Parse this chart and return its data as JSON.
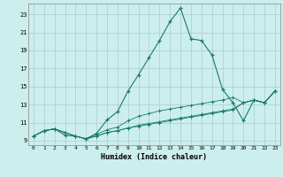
{
  "xlabel": "Humidex (Indice chaleur)",
  "bg_color": "#cceeed",
  "grid_color_major": "#aacccc",
  "grid_color_minor": "#bbdddd",
  "line_color": "#1a7a6e",
  "xlim": [
    -0.5,
    23.5
  ],
  "ylim": [
    8.5,
    24.2
  ],
  "xticks": [
    0,
    1,
    2,
    3,
    4,
    5,
    6,
    7,
    8,
    9,
    10,
    11,
    12,
    13,
    14,
    15,
    16,
    17,
    18,
    19,
    20,
    21,
    22,
    23
  ],
  "yticks": [
    9,
    11,
    13,
    15,
    17,
    19,
    21,
    23
  ],
  "series": [
    [
      9.5,
      10.1,
      10.3,
      9.6,
      9.5,
      9.2,
      9.8,
      11.3,
      12.2,
      14.5,
      16.3,
      18.2,
      20.1,
      22.2,
      23.7,
      20.3,
      20.1,
      18.5,
      14.7,
      13.2,
      11.2,
      13.5,
      13.2,
      14.5
    ],
    [
      9.5,
      10.1,
      10.3,
      9.9,
      9.5,
      9.2,
      9.7,
      10.2,
      10.5,
      11.2,
      11.7,
      12.0,
      12.3,
      12.5,
      12.7,
      12.9,
      13.1,
      13.3,
      13.5,
      13.8,
      13.2,
      13.5,
      13.2,
      14.5
    ],
    [
      9.5,
      10.1,
      10.3,
      9.9,
      9.5,
      9.2,
      9.5,
      9.9,
      10.1,
      10.4,
      10.7,
      10.9,
      11.1,
      11.3,
      11.5,
      11.7,
      11.9,
      12.1,
      12.3,
      12.5,
      13.2,
      13.5,
      13.2,
      14.5
    ],
    [
      9.5,
      10.1,
      10.3,
      9.9,
      9.5,
      9.2,
      9.5,
      9.9,
      10.1,
      10.4,
      10.6,
      10.8,
      11.0,
      11.2,
      11.4,
      11.6,
      11.8,
      12.0,
      12.2,
      12.4,
      13.2,
      13.5,
      13.2,
      14.5
    ]
  ]
}
